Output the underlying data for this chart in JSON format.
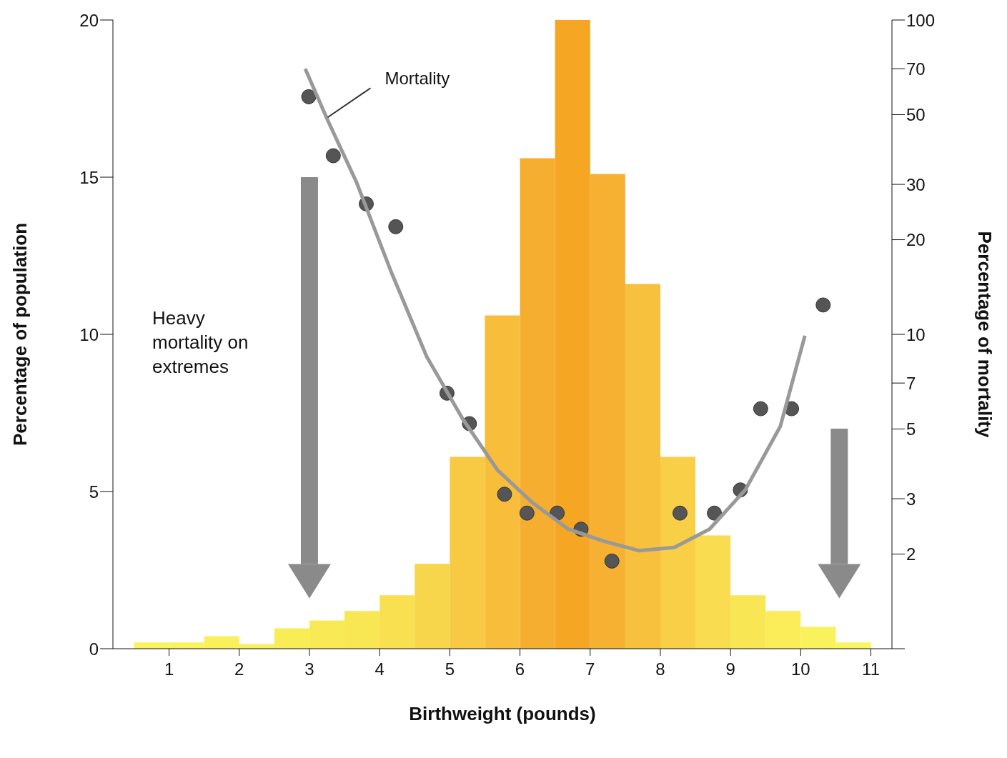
{
  "chart_data": {
    "type": "histogram",
    "xlabel": "Birthweight (pounds)",
    "ylabel": "Percentage of population",
    "y2label": "Percentage of mortality",
    "annotations": [
      "Heavy mortality on extremes"
    ],
    "bins": [
      0.5,
      1,
      1.5,
      2,
      2.5,
      3,
      3.5,
      4,
      4.5,
      5,
      5.5,
      6,
      6.5,
      7,
      7.5,
      8,
      8.5,
      9,
      9.5,
      10,
      10.5,
      11
    ],
    "values": [
      0.2,
      0.2,
      0.4,
      0.15,
      0.65,
      0.9,
      1.2,
      1.7,
      2.7,
      6.1,
      10.6,
      15.6,
      20,
      15.1,
      11.6,
      6.1,
      3.6,
      1.7,
      1.2,
      0.7,
      0.2
    ],
    "colors": [
      "#faf35c",
      "#faf35c",
      "#faf15a",
      "#faf05a",
      "#f9ed57",
      "#f9ea55",
      "#f9e653",
      "#f9e051",
      "#f8d64b",
      "#f8ca44",
      "#f7bd3b",
      "#f6ae30",
      "#f5a623",
      "#f6b032",
      "#f7c03d",
      "#f8cf47",
      "#f9dc4f",
      "#f9e655",
      "#faed59",
      "#faf25c",
      "#fbf55e"
    ],
    "series": [
      {
        "type": "scatter",
        "axis": "y2",
        "color": "#555555",
        "marker": "circle",
        "x": [
          2.99,
          3.34,
          3.81,
          4.23,
          4.96,
          5.28,
          5.78,
          6.1,
          6.53,
          6.87,
          7.31,
          8.28,
          8.77,
          9.14,
          9.43,
          9.87,
          10.32
        ],
        "values": [
          57,
          37,
          26,
          22,
          6.5,
          5.2,
          3.1,
          2.7,
          2.7,
          2.4,
          1.9,
          2.7,
          2.7,
          3.2,
          5.8,
          5.8,
          12.4
        ]
      },
      {
        "type": "line",
        "name": "Mortality",
        "axis": "y2",
        "color": "#999999",
        "x": [
          2.94,
          3.26,
          3.67,
          4.17,
          4.67,
          5.18,
          5.68,
          6.19,
          6.69,
          7.19,
          7.7,
          8.2,
          8.7,
          9.21,
          9.71,
          10.06
        ],
        "values": [
          70,
          48,
          30.5,
          15.7,
          8.5,
          5.4,
          3.7,
          2.9,
          2.4,
          2.2,
          2.05,
          2.1,
          2.4,
          3.2,
          5.1,
          9.9
        ]
      }
    ],
    "xlim": [
      0.2,
      11.3
    ],
    "xticks": [
      1,
      2,
      3,
      4,
      5,
      6,
      7,
      8,
      9,
      10,
      11
    ],
    "ylim": [
      0,
      20
    ],
    "yticks": [
      0,
      5,
      10,
      15,
      20
    ],
    "y2lim": [
      1,
      100
    ],
    "y2ticks": [
      {
        "value": 1,
        "label": null
      },
      2,
      3,
      5,
      7,
      10,
      20,
      30,
      50,
      70,
      100
    ],
    "log": "y2",
    "grid": false,
    "legend": false
  }
}
